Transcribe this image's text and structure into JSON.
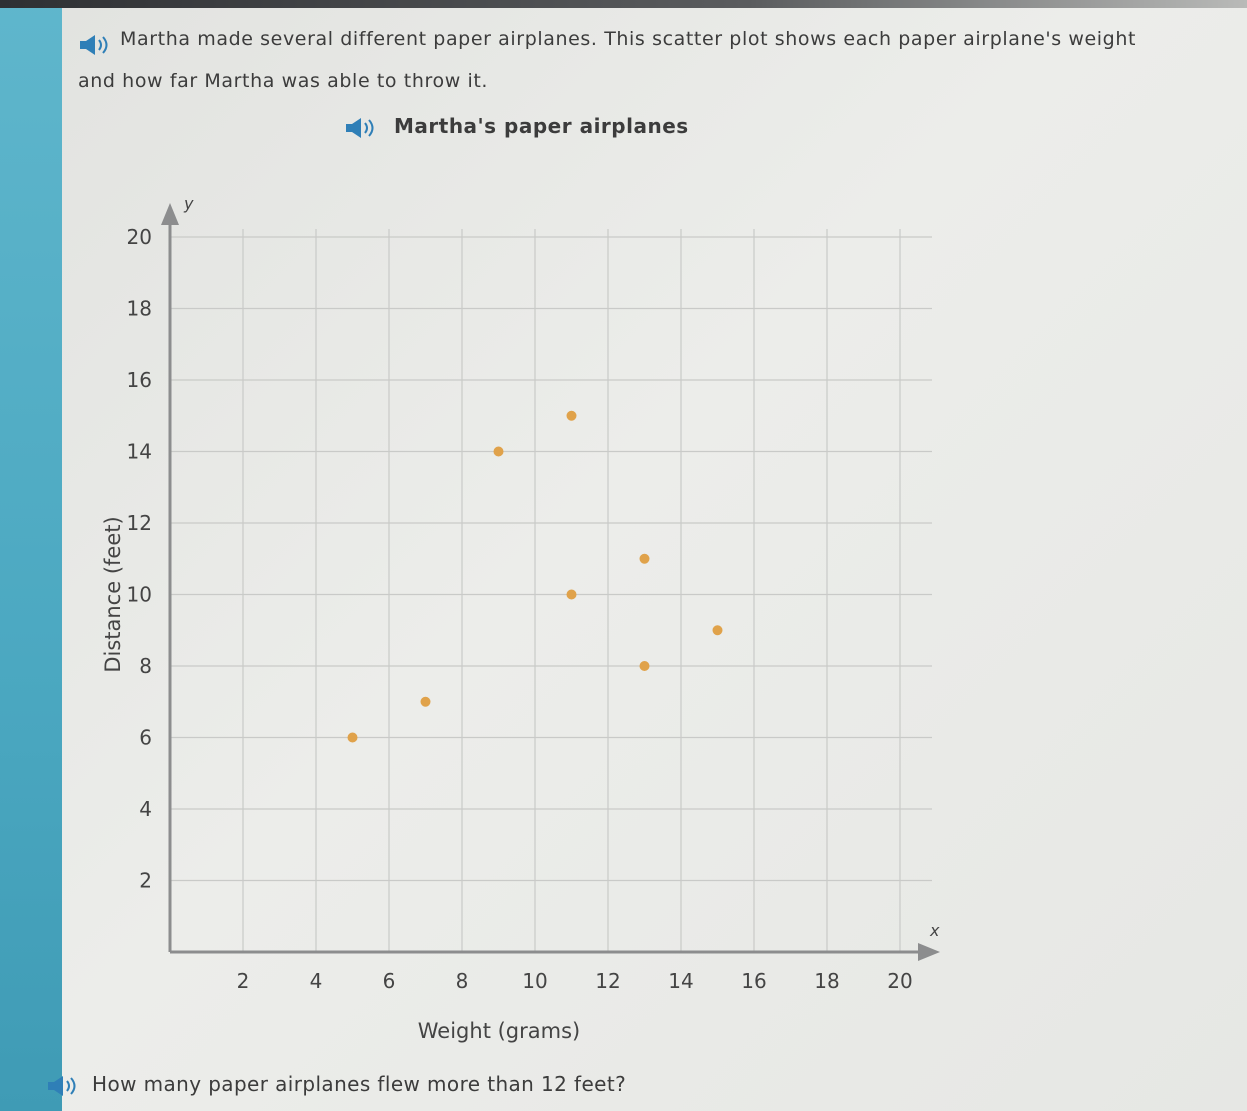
{
  "prompt_text": "Martha made several different paper airplanes. This scatter plot shows each paper airplane's weight and how far Martha was able to throw it.",
  "question_text": "How many paper airplanes flew more than 12 feet?",
  "icons": {
    "audio": "speaker-icon"
  },
  "colors": {
    "point": "#e0a24a",
    "accent": "#2f7fb7",
    "grid": "#c9cac8",
    "axis": "#8c8d8e"
  },
  "chart_data": {
    "type": "scatter",
    "title": "Martha's paper airplanes",
    "xlabel": "Weight (grams)",
    "ylabel": "Distance (feet)",
    "x_axis_letter": "x",
    "y_axis_letter": "y",
    "xlim": [
      0,
      20
    ],
    "ylim": [
      0,
      20
    ],
    "xticks": [
      2,
      4,
      6,
      8,
      10,
      12,
      14,
      16,
      18,
      20
    ],
    "yticks": [
      2,
      4,
      6,
      8,
      10,
      12,
      14,
      16,
      18,
      20
    ],
    "grid": true,
    "points": [
      {
        "x": 5,
        "y": 6
      },
      {
        "x": 7,
        "y": 7
      },
      {
        "x": 9,
        "y": 14
      },
      {
        "x": 11,
        "y": 10
      },
      {
        "x": 11,
        "y": 15
      },
      {
        "x": 13,
        "y": 8
      },
      {
        "x": 13,
        "y": 11
      },
      {
        "x": 15,
        "y": 9
      }
    ]
  }
}
